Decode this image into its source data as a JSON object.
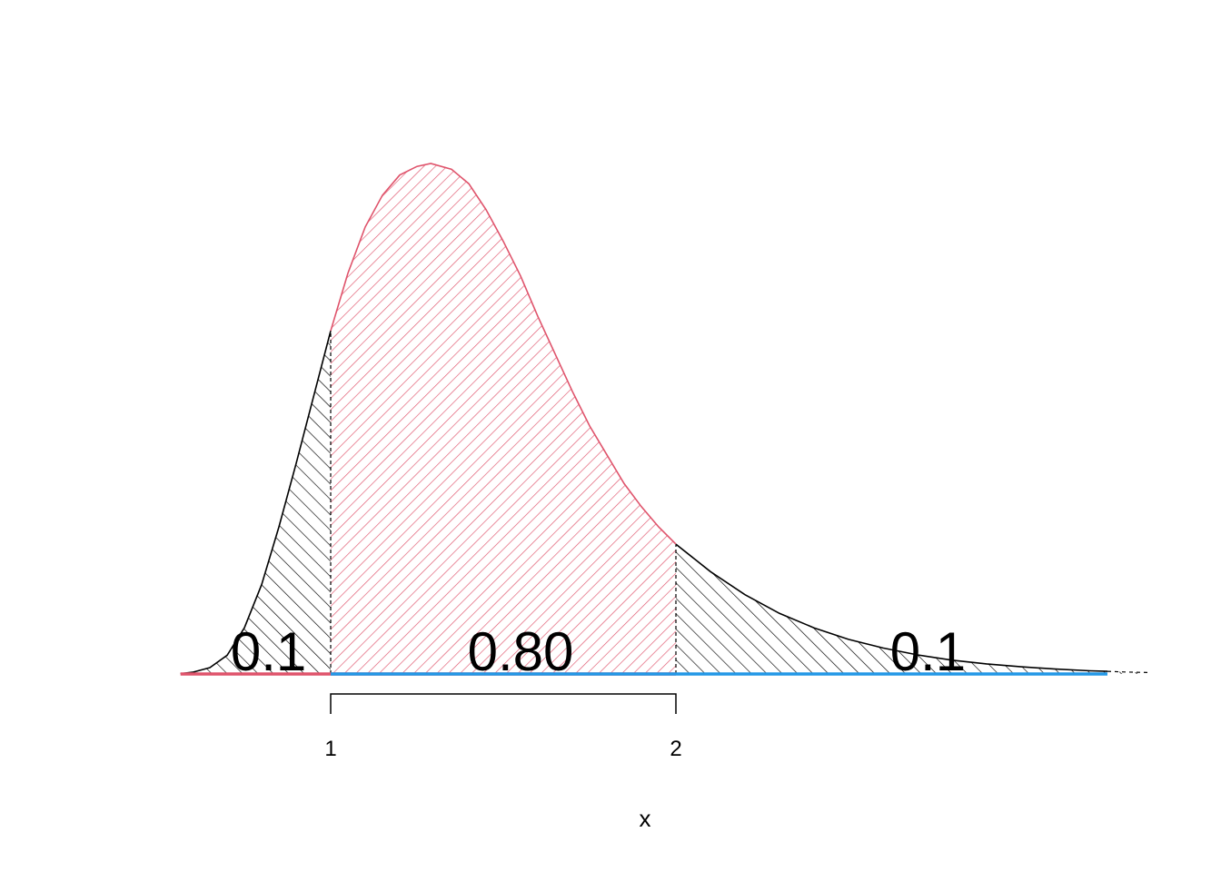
{
  "chart_data": {
    "type": "area",
    "title": "",
    "xlabel": "x",
    "ylabel": "",
    "x_ticks": [
      1,
      2
    ],
    "x_tick_labels": [
      "1",
      "2"
    ],
    "xlim": [
      0.565,
      3.37
    ],
    "grid": false,
    "legend": "none",
    "curve": {
      "x": [
        0.57,
        0.6,
        0.65,
        0.7,
        0.75,
        0.8,
        0.85,
        0.9,
        0.95,
        1.0,
        1.05,
        1.1,
        1.15,
        1.2,
        1.25,
        1.29,
        1.35,
        1.4,
        1.45,
        1.5,
        1.55,
        1.6,
        1.65,
        1.7,
        1.75,
        1.8,
        1.85,
        1.9,
        1.95,
        2.0,
        2.1,
        2.2,
        2.3,
        2.4,
        2.5,
        2.6,
        2.7,
        2.8,
        2.9,
        3.0,
        3.1,
        3.2,
        3.3,
        3.37
      ],
      "y": [
        0.002,
        0.006,
        0.022,
        0.065,
        0.16,
        0.31,
        0.51,
        0.73,
        0.96,
        1.19,
        1.39,
        1.55,
        1.66,
        1.73,
        1.76,
        1.77,
        1.75,
        1.7,
        1.61,
        1.5,
        1.38,
        1.24,
        1.11,
        0.98,
        0.86,
        0.76,
        0.66,
        0.58,
        0.51,
        0.45,
        0.355,
        0.275,
        0.21,
        0.16,
        0.12,
        0.09,
        0.066,
        0.048,
        0.035,
        0.025,
        0.017,
        0.011,
        0.007,
        0.005
      ]
    },
    "ylim": [
      0,
      1.77
    ],
    "regions": [
      {
        "from": 0.565,
        "to": 1.0,
        "probability_label": "0.1",
        "label_x": 0.82,
        "fill": "hatch",
        "color": "#000000"
      },
      {
        "from": 1.0,
        "to": 2.0,
        "probability_label": "0.80",
        "label_x": 1.55,
        "fill": "hatch",
        "color": "#DF536B"
      },
      {
        "from": 2.0,
        "to": 3.37,
        "probability_label": "0.1",
        "label_x": 2.73,
        "fill": "hatch",
        "color": "#000000"
      }
    ],
    "baseline_segments": [
      {
        "from": 0.565,
        "to": 2.0,
        "color": "#DF536B"
      },
      {
        "from": 1.0,
        "to": 3.25,
        "color": "#2297E6"
      }
    ],
    "interval_bracket": {
      "from": 1.0,
      "to": 2.0
    },
    "colors": {
      "curve": "#000000",
      "central": "#DF536B",
      "upper": "#2297E6"
    }
  }
}
